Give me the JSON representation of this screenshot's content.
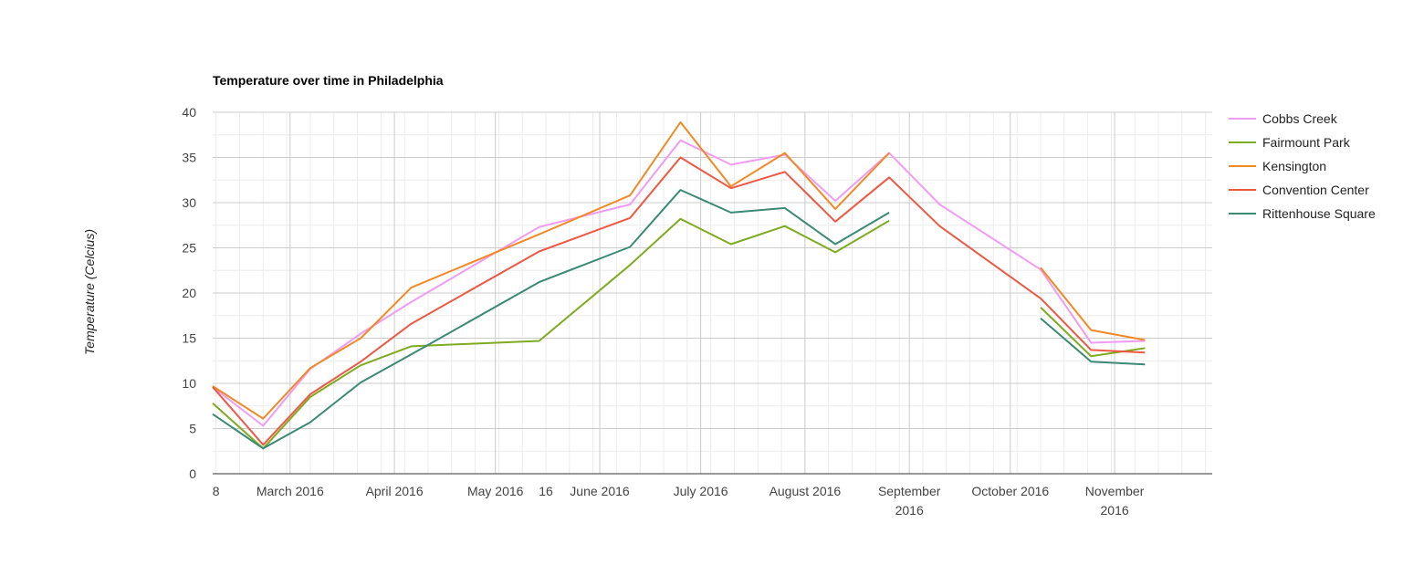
{
  "chart_data": {
    "type": "line",
    "title": "Temperature over time in Philadelphia",
    "xlabel": "",
    "ylabel": "Temperature (Celcius)",
    "ylim": [
      0,
      40
    ],
    "yticks": [
      0,
      5,
      10,
      15,
      20,
      25,
      30,
      35,
      40
    ],
    "xlim": [
      "2016-02-07",
      "2016-11-30"
    ],
    "xticks": [
      {
        "date": "2016-02-08",
        "label": [
          "8"
        ]
      },
      {
        "date": "2016-03-01",
        "label": [
          "March 2016"
        ]
      },
      {
        "date": "2016-04-01",
        "label": [
          "April 2016"
        ]
      },
      {
        "date": "2016-05-01",
        "label": [
          "May 2016"
        ]
      },
      {
        "date": "2016-05-16",
        "label": [
          "16"
        ]
      },
      {
        "date": "2016-06-01",
        "label": [
          "June 2016"
        ]
      },
      {
        "date": "2016-07-01",
        "label": [
          "July 2016"
        ]
      },
      {
        "date": "2016-08-01",
        "label": [
          "August 2016"
        ]
      },
      {
        "date": "2016-09-01",
        "label": [
          "September",
          "2016"
        ]
      },
      {
        "date": "2016-10-01",
        "label": [
          "October 2016"
        ]
      },
      {
        "date": "2016-11-01",
        "label": [
          "November",
          "2016"
        ]
      }
    ],
    "major_grid_dates": [
      "2016-03-01",
      "2016-04-01",
      "2016-05-01",
      "2016-06-01",
      "2016-07-01",
      "2016-08-01",
      "2016-09-01",
      "2016-10-01",
      "2016-11-01"
    ],
    "grid": true,
    "legend": "right",
    "x": [
      "2016-02-07",
      "2016-02-22",
      "2016-03-07",
      "2016-03-22",
      "2016-04-06",
      "2016-05-14",
      "2016-06-10",
      "2016-06-25",
      "2016-07-10",
      "2016-07-26",
      "2016-08-10",
      "2016-08-26",
      "2016-09-10",
      "2016-09-25",
      "2016-10-10",
      "2016-10-25",
      "2016-11-10",
      "2016-11-25"
    ],
    "series": [
      {
        "name": "Cobbs Creek",
        "color": "#f09cf2",
        "values": [
          9.6,
          5.3,
          11.6,
          15.5,
          19.0,
          27.3,
          29.8,
          36.9,
          34.2,
          35.3,
          30.2,
          35.5,
          29.8,
          26.2,
          22.6,
          14.5,
          14.7,
          null
        ]
      },
      {
        "name": "Fairmount Park",
        "color": "#7fab21",
        "values": [
          7.8,
          2.8,
          8.5,
          12.0,
          14.1,
          14.7,
          23.1,
          28.2,
          25.4,
          27.4,
          24.5,
          28.0,
          null,
          null,
          18.4,
          13.0,
          13.9,
          null
        ]
      },
      {
        "name": "Kensington",
        "color": "#f18a25",
        "values": [
          9.7,
          6.1,
          11.7,
          15.0,
          20.6,
          26.5,
          30.8,
          38.9,
          31.8,
          35.5,
          29.3,
          35.5,
          null,
          null,
          22.8,
          15.9,
          14.8,
          null
        ]
      },
      {
        "name": "Convention Center",
        "color": "#ef5844",
        "values": [
          9.6,
          3.2,
          8.8,
          12.4,
          16.6,
          24.6,
          28.3,
          35.0,
          31.6,
          33.4,
          27.9,
          32.8,
          27.4,
          23.4,
          19.4,
          13.7,
          13.4,
          null
        ]
      },
      {
        "name": "Rittenhouse Square",
        "color": "#3a8a75",
        "values": [
          6.6,
          2.8,
          5.7,
          10.1,
          13.2,
          21.2,
          25.1,
          31.4,
          28.9,
          29.4,
          25.4,
          28.9,
          null,
          null,
          17.2,
          12.4,
          12.1,
          null
        ]
      }
    ]
  }
}
